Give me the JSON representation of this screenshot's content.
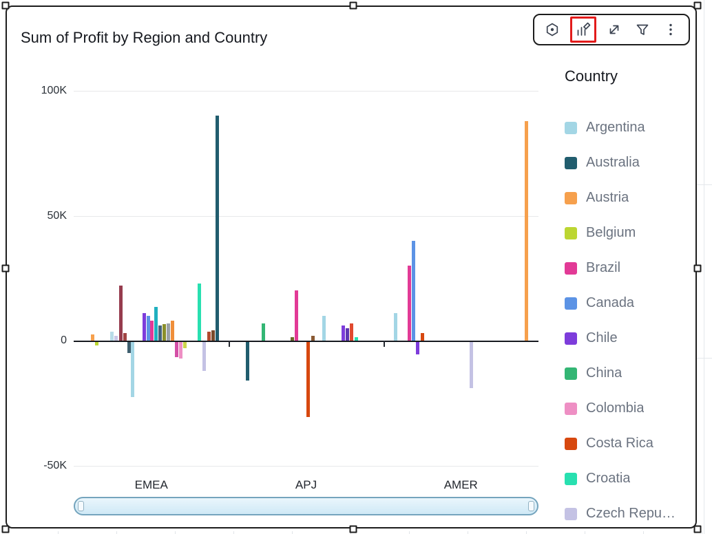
{
  "widget": {
    "title": "Sum of Profit by Region and Country"
  },
  "toolbar": {
    "highlight_color": "#e21b1b",
    "icons": [
      {
        "name": "hexagon-icon",
        "highlighted": false
      },
      {
        "name": "edit-visual-icon",
        "highlighted": true
      },
      {
        "name": "expand-icon",
        "highlighted": false
      },
      {
        "name": "filter-icon",
        "highlighted": false
      },
      {
        "name": "kebab-menu-icon",
        "highlighted": false
      }
    ]
  },
  "legend": {
    "title": "Country",
    "items": [
      {
        "label": "Argentina",
        "color": "#a3d6e5"
      },
      {
        "label": "Australia",
        "color": "#215d6e"
      },
      {
        "label": "Austria",
        "color": "#f6a04d"
      },
      {
        "label": "Belgium",
        "color": "#bcd632"
      },
      {
        "label": "Brazil",
        "color": "#e23a96"
      },
      {
        "label": "Canada",
        "color": "#5c93e5"
      },
      {
        "label": "Chile",
        "color": "#7d3cdb"
      },
      {
        "label": "China",
        "color": "#33b674"
      },
      {
        "label": "Colombia",
        "color": "#ee8fc4"
      },
      {
        "label": "Costa Rica",
        "color": "#d7480f"
      },
      {
        "label": "Croatia",
        "color": "#28e0b0"
      },
      {
        "label": "Czech Repu…",
        "color": "#c4c2e4"
      }
    ]
  },
  "chart_data": {
    "type": "bar",
    "title": "Sum of Profit by Region and Country",
    "value_unit": "K (thousands)",
    "y_ticks": [
      "100K",
      "50K",
      "0",
      "-50K"
    ],
    "y_tick_values": [
      100,
      50,
      0,
      -50
    ],
    "ylim_k": [
      -55,
      110
    ],
    "grid": "horizontal",
    "legend_position": "right",
    "categories": [
      "EMEA",
      "APJ",
      "AMER"
    ],
    "category_centers": [
      0.167,
      0.5,
      0.833
    ],
    "group_boundaries": [
      0.333,
      0.667
    ],
    "bars": [
      {
        "region": "EMEA",
        "x": 0.037,
        "value_k": 2.5,
        "color": "#f6a04d",
        "country": "Austria"
      },
      {
        "region": "EMEA",
        "x": 0.046,
        "value_k": -1.5,
        "color": "#bcd632",
        "country": "Belgium"
      },
      {
        "region": "EMEA",
        "x": 0.079,
        "value_k": 3.5,
        "color": "#b8dce8",
        "country": ""
      },
      {
        "region": "EMEA",
        "x": 0.087,
        "value_k": 2.0,
        "color": "#c9c7e8",
        "country": ""
      },
      {
        "region": "EMEA",
        "x": 0.098,
        "value_k": 22,
        "color": "#963c4e",
        "country": ""
      },
      {
        "region": "EMEA",
        "x": 0.107,
        "value_k": 3.0,
        "color": "#a04343",
        "country": ""
      },
      {
        "region": "EMEA",
        "x": 0.116,
        "value_k": -4.5,
        "color": "#3f5f6f",
        "country": ""
      },
      {
        "region": "EMEA",
        "x": 0.123,
        "value_k": -22,
        "color": "#a3d6e5",
        "country": "Argentina"
      },
      {
        "region": "EMEA",
        "x": 0.148,
        "value_k": 11,
        "color": "#7d3cdb",
        "country": "Chile"
      },
      {
        "region": "EMEA",
        "x": 0.157,
        "value_k": 10,
        "color": "#5c93e5",
        "country": "Canada"
      },
      {
        "region": "EMEA",
        "x": 0.164,
        "value_k": 8,
        "color": "#e23a96",
        "country": "Brazil"
      },
      {
        "region": "EMEA",
        "x": 0.173,
        "value_k": 13.5,
        "color": "#1fb0bf",
        "country": ""
      },
      {
        "region": "EMEA",
        "x": 0.182,
        "value_k": 6,
        "color": "#46627a",
        "country": ""
      },
      {
        "region": "EMEA",
        "x": 0.191,
        "value_k": 6.5,
        "color": "#8a8f2a",
        "country": ""
      },
      {
        "region": "EMEA",
        "x": 0.2,
        "value_k": 7,
        "color": "#9aa0a6",
        "country": ""
      },
      {
        "region": "EMEA",
        "x": 0.209,
        "value_k": 8,
        "color": "#ef8e3a",
        "country": ""
      },
      {
        "region": "EMEA",
        "x": 0.218,
        "value_k": -6,
        "color": "#d44fa6",
        "country": ""
      },
      {
        "region": "EMEA",
        "x": 0.227,
        "value_k": -6.5,
        "color": "#ee8fc4",
        "country": "Colombia"
      },
      {
        "region": "EMEA",
        "x": 0.236,
        "value_k": -2.5,
        "color": "#cdd64a",
        "country": ""
      },
      {
        "region": "EMEA",
        "x": 0.267,
        "value_k": 23,
        "color": "#28e0b0",
        "country": "Croatia"
      },
      {
        "region": "EMEA",
        "x": 0.277,
        "value_k": -11.5,
        "color": "#c4c2e4",
        "country": "Czech Republic"
      },
      {
        "region": "EMEA",
        "x": 0.287,
        "value_k": 3.5,
        "color": "#b14a2e",
        "country": ""
      },
      {
        "region": "EMEA",
        "x": 0.296,
        "value_k": 4,
        "color": "#7a4a2b",
        "country": ""
      },
      {
        "region": "EMEA",
        "x": 0.305,
        "value_k": 90,
        "color": "#215d6e",
        "country": "Australia"
      },
      {
        "region": "APJ",
        "x": 0.37,
        "value_k": -15.5,
        "color": "#215d6e",
        "country": "Australia"
      },
      {
        "region": "APJ",
        "x": 0.404,
        "value_k": 7,
        "color": "#33b674",
        "country": "China"
      },
      {
        "region": "APJ",
        "x": 0.467,
        "value_k": 1.5,
        "color": "#6b6b2a",
        "country": ""
      },
      {
        "region": "APJ",
        "x": 0.476,
        "value_k": 20,
        "color": "#e23a96",
        "country": "Brazil"
      },
      {
        "region": "APJ",
        "x": 0.501,
        "value_k": -30,
        "color": "#d7480f",
        "country": "Costa Rica"
      },
      {
        "region": "APJ",
        "x": 0.511,
        "value_k": 2,
        "color": "#8a5a33",
        "country": ""
      },
      {
        "region": "APJ",
        "x": 0.535,
        "value_k": 10,
        "color": "#a3d6e5",
        "country": "Argentina"
      },
      {
        "region": "APJ",
        "x": 0.576,
        "value_k": 6,
        "color": "#7d3cdb",
        "country": "Chile"
      },
      {
        "region": "APJ",
        "x": 0.585,
        "value_k": 5,
        "color": "#5e35b1",
        "country": ""
      },
      {
        "region": "APJ",
        "x": 0.594,
        "value_k": 7,
        "color": "#e0492f",
        "country": ""
      },
      {
        "region": "APJ",
        "x": 0.604,
        "value_k": 1.5,
        "color": "#28e0b0",
        "country": "Croatia"
      },
      {
        "region": "AMER",
        "x": 0.689,
        "value_k": 11,
        "color": "#a3d6e5",
        "country": "Argentina"
      },
      {
        "region": "AMER",
        "x": 0.719,
        "value_k": 30,
        "color": "#e23a96",
        "country": "Brazil"
      },
      {
        "region": "AMER",
        "x": 0.727,
        "value_k": 40,
        "color": "#5c93e5",
        "country": "Canada"
      },
      {
        "region": "AMER",
        "x": 0.736,
        "value_k": -5,
        "color": "#7d3cdb",
        "country": "Chile"
      },
      {
        "region": "AMER",
        "x": 0.747,
        "value_k": 3,
        "color": "#d7480f",
        "country": "Costa Rica"
      },
      {
        "region": "AMER",
        "x": 0.852,
        "value_k": -18.5,
        "color": "#c4c2e4",
        "country": "Czech Republic"
      },
      {
        "region": "AMER",
        "x": 0.97,
        "value_k": 88,
        "color": "#f6a04d",
        "country": "Austria"
      }
    ]
  }
}
